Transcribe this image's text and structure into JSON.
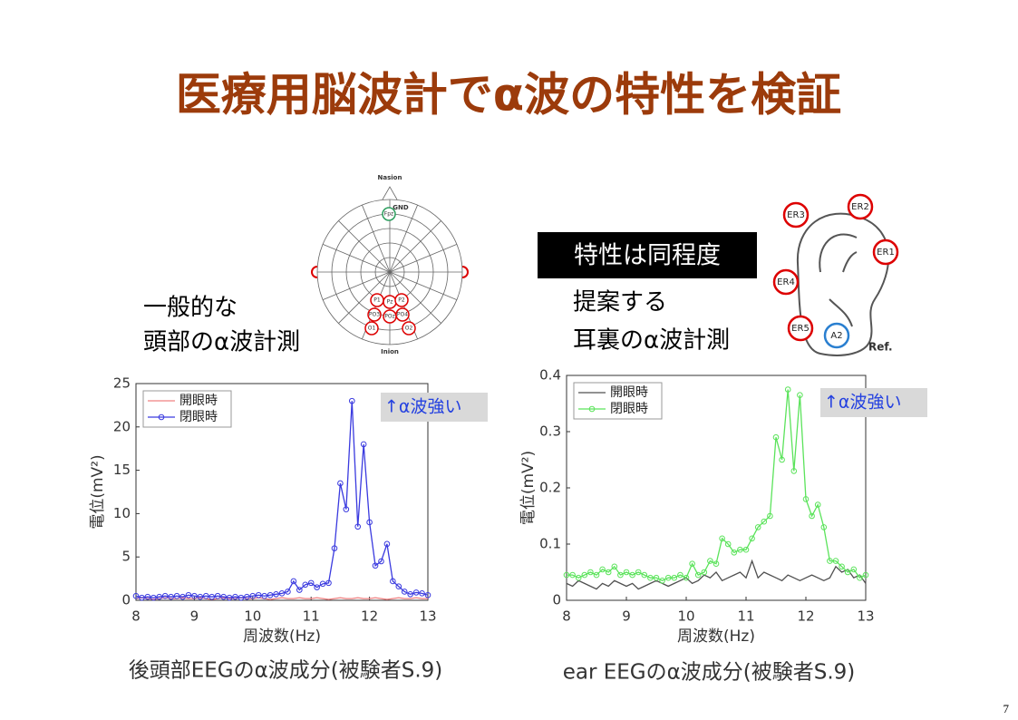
{
  "title": "医療用脳波計でα波の特性を検証",
  "page_number": "7",
  "badge": "特性は同程度",
  "left": {
    "label_lines": [
      "一般的な",
      "頭部のα波計測"
    ],
    "caption": "後頭部EEGのα波成分(被験者S.9)",
    "diagram": {
      "top": "Nasion",
      "bottom": "Inion",
      "ground": "GND",
      "electrodes": [
        "Fpz",
        "P1",
        "Pz",
        "P2",
        "PO3",
        "POz",
        "PO4",
        "O1",
        "O2"
      ]
    }
  },
  "right": {
    "label_lines": [
      "提案する",
      "耳裏のα波計測"
    ],
    "caption": "ear EEGのα波成分(被験者S.9)",
    "diagram": {
      "electrodes": [
        "ER1",
        "ER2",
        "ER3",
        "ER4",
        "ER5",
        "A2"
      ],
      "reference": "Ref."
    }
  },
  "chart_data": [
    {
      "type": "line",
      "xlabel": "周波数(Hz)",
      "ylabel": "電位(mV²)",
      "annotation": "↑α波強い",
      "xlim": [
        8,
        13
      ],
      "xticks": [
        8,
        9,
        10,
        11,
        12,
        13
      ],
      "ylim": [
        0,
        25
      ],
      "yticks": [
        0,
        5,
        10,
        15,
        20,
        25
      ],
      "legend": "upper left",
      "x": [
        8,
        8.1,
        8.2,
        8.3,
        8.4,
        8.5,
        8.6,
        8.7,
        8.8,
        8.9,
        9,
        9.1,
        9.2,
        9.3,
        9.4,
        9.5,
        9.6,
        9.7,
        9.8,
        9.9,
        10,
        10.1,
        10.2,
        10.3,
        10.4,
        10.5,
        10.6,
        10.7,
        10.8,
        10.9,
        11,
        11.1,
        11.2,
        11.3,
        11.4,
        11.5,
        11.6,
        11.7,
        11.8,
        11.9,
        12,
        12.1,
        12.2,
        12.3,
        12.4,
        12.5,
        12.6,
        12.7,
        12.8,
        12.9,
        13
      ],
      "series": [
        {
          "name": "開眼時",
          "color": "#f08080",
          "values": [
            0.2,
            0.3,
            0.2,
            0.1,
            0.2,
            0.3,
            0.2,
            0.2,
            0.3,
            0.2,
            0.2,
            0.3,
            0.2,
            0.1,
            0.2,
            0.3,
            0.2,
            0.2,
            0.3,
            0.2,
            0.2,
            0.3,
            0.2,
            0.1,
            0.2,
            0.3,
            0.2,
            0.2,
            0.3,
            0.2,
            0.2,
            0.3,
            0.2,
            0.1,
            0.2,
            0.3,
            0.2,
            0.2,
            0.3,
            0.2,
            0.2,
            0.3,
            0.2,
            0.1,
            0.2,
            0.3,
            0.2,
            0.2,
            0.3,
            0.2,
            0.2
          ]
        },
        {
          "name": "閉眼時",
          "color": "#3a3adf",
          "marker": "o",
          "values": [
            0.5,
            0.3,
            0.4,
            0.3,
            0.4,
            0.5,
            0.4,
            0.5,
            0.4,
            0.6,
            0.5,
            0.4,
            0.5,
            0.4,
            0.5,
            0.4,
            0.3,
            0.4,
            0.3,
            0.4,
            0.5,
            0.6,
            0.5,
            0.6,
            0.7,
            0.8,
            1.0,
            2.2,
            1.2,
            1.8,
            2.0,
            1.5,
            1.9,
            2.0,
            6.0,
            13.5,
            10.5,
            23.0,
            8.5,
            18.0,
            9.0,
            4.0,
            4.5,
            6.5,
            2.2,
            1.6,
            1.0,
            0.7,
            0.9,
            0.8,
            0.6
          ]
        }
      ]
    },
    {
      "type": "line",
      "xlabel": "周波数(Hz)",
      "ylabel": "電位(mV²)",
      "annotation": "↑α波強い",
      "xlim": [
        8,
        13
      ],
      "xticks": [
        8,
        9,
        10,
        11,
        12,
        13
      ],
      "ylim": [
        0,
        0.4
      ],
      "yticks": [
        0,
        0.1,
        0.2,
        0.3,
        0.4
      ],
      "legend": "upper left",
      "x": [
        8,
        8.1,
        8.2,
        8.3,
        8.4,
        8.5,
        8.6,
        8.7,
        8.8,
        8.9,
        9,
        9.1,
        9.2,
        9.3,
        9.4,
        9.5,
        9.6,
        9.7,
        9.8,
        9.9,
        10,
        10.1,
        10.2,
        10.3,
        10.4,
        10.5,
        10.6,
        10.7,
        10.8,
        10.9,
        11,
        11.1,
        11.2,
        11.3,
        11.4,
        11.5,
        11.6,
        11.7,
        11.8,
        11.9,
        12,
        12.1,
        12.2,
        12.3,
        12.4,
        12.5,
        12.6,
        12.7,
        12.8,
        12.9,
        13
      ],
      "series": [
        {
          "name": "開眼時",
          "color": "#505050",
          "values": [
            0.03,
            0.025,
            0.035,
            0.03,
            0.025,
            0.02,
            0.03,
            0.025,
            0.035,
            0.03,
            0.025,
            0.03,
            0.02,
            0.025,
            0.03,
            0.035,
            0.03,
            0.025,
            0.03,
            0.035,
            0.04,
            0.03,
            0.035,
            0.045,
            0.04,
            0.05,
            0.035,
            0.04,
            0.045,
            0.05,
            0.04,
            0.07,
            0.04,
            0.05,
            0.045,
            0.04,
            0.035,
            0.045,
            0.04,
            0.035,
            0.04,
            0.045,
            0.04,
            0.035,
            0.04,
            0.06,
            0.05,
            0.055,
            0.04,
            0.045,
            0.03
          ]
        },
        {
          "name": "閉眼時",
          "color": "#5be35b",
          "marker": "o",
          "values": [
            0.045,
            0.045,
            0.04,
            0.045,
            0.05,
            0.045,
            0.055,
            0.05,
            0.06,
            0.045,
            0.05,
            0.045,
            0.05,
            0.045,
            0.04,
            0.04,
            0.035,
            0.04,
            0.04,
            0.045,
            0.04,
            0.065,
            0.045,
            0.05,
            0.07,
            0.065,
            0.11,
            0.1,
            0.085,
            0.09,
            0.09,
            0.11,
            0.13,
            0.14,
            0.15,
            0.29,
            0.25,
            0.375,
            0.23,
            0.365,
            0.18,
            0.15,
            0.17,
            0.13,
            0.07,
            0.07,
            0.06,
            0.05,
            0.055,
            0.04,
            0.045
          ]
        }
      ]
    }
  ]
}
